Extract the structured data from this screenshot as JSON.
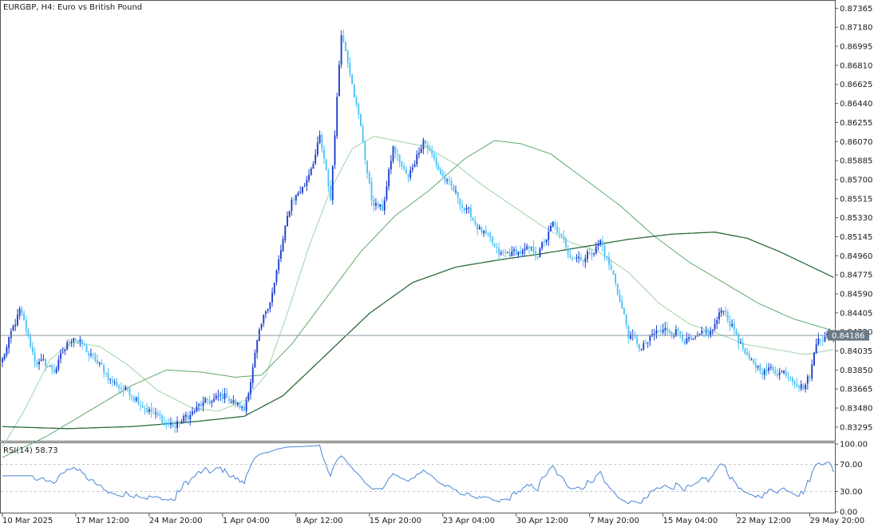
{
  "window": {
    "title": "EURGBP, H4:  Euro vs British Pound"
  },
  "colors": {
    "bull": "#1e3fd0",
    "bear": "#4fc3f7",
    "ma_fast": "#9fd3a8",
    "ma_mid": "#5fa86a",
    "ma_slow": "#2f6b3a",
    "rsi": "#4a86d6",
    "grid": "#c8c8c8",
    "price_line": "#8a9aa6",
    "price_label_bg": "#6a7a86"
  },
  "chart_data": [
    {
      "type": "candlestick",
      "title": "EURGBP, H4:  Euro vs British Pound",
      "symbol": "EURGBP",
      "timeframe": "H4",
      "ylim": [
        0.8317,
        0.8743
      ],
      "y_ticks": [
        "0.87365",
        "0.87180",
        "0.86995",
        "0.86810",
        "0.86625",
        "0.86440",
        "0.86255",
        "0.86070",
        "0.85885",
        "0.85700",
        "0.85515",
        "0.85330",
        "0.85145",
        "0.84960",
        "0.84775",
        "0.84590",
        "0.84405",
        "0.84220",
        "0.84035",
        "0.83850",
        "0.83665",
        "0.83480",
        "0.83295"
      ],
      "x_labels": [
        "10 Mar 2025",
        "17 Mar 12:00",
        "24 Mar 20:00",
        "1 Apr 04:00",
        "8 Apr 12:00",
        "15 Apr 20:00",
        "23 Apr 04:00",
        "30 Apr 12:00",
        "7 May 20:00",
        "15 May 04:00",
        "22 May 12:00",
        "29 May 20:00"
      ],
      "x_label_bars": [
        0,
        34,
        68,
        102,
        136,
        170,
        204,
        238,
        272,
        306,
        340,
        374
      ],
      "current_price": "0.84186",
      "current_price_value": 0.84186,
      "bar_count": 386,
      "anchors": [
        [
          0,
          0.8395
        ],
        [
          8,
          0.8441
        ],
        [
          15,
          0.8395
        ],
        [
          24,
          0.8385
        ],
        [
          33,
          0.842
        ],
        [
          40,
          0.84
        ],
        [
          52,
          0.8372
        ],
        [
          62,
          0.836
        ],
        [
          72,
          0.8338
        ],
        [
          80,
          0.833
        ],
        [
          92,
          0.835
        ],
        [
          104,
          0.836
        ],
        [
          112,
          0.8345
        ],
        [
          118,
          0.841
        ],
        [
          126,
          0.847
        ],
        [
          134,
          0.855
        ],
        [
          140,
          0.8565
        ],
        [
          147,
          0.861
        ],
        [
          152,
          0.855
        ],
        [
          157,
          0.8715
        ],
        [
          162,
          0.867
        ],
        [
          166,
          0.862
        ],
        [
          171,
          0.855
        ],
        [
          176,
          0.854
        ],
        [
          181,
          0.86
        ],
        [
          188,
          0.857
        ],
        [
          195,
          0.8612
        ],
        [
          202,
          0.858
        ],
        [
          208,
          0.856
        ],
        [
          215,
          0.854
        ],
        [
          222,
          0.852
        ],
        [
          230,
          0.8495
        ],
        [
          240,
          0.85
        ],
        [
          248,
          0.8498
        ],
        [
          255,
          0.8525
        ],
        [
          262,
          0.85
        ],
        [
          270,
          0.8495
        ],
        [
          277,
          0.851
        ],
        [
          284,
          0.847
        ],
        [
          290,
          0.842
        ],
        [
          296,
          0.8405
        ],
        [
          303,
          0.842
        ],
        [
          312,
          0.8425
        ],
        [
          320,
          0.841
        ],
        [
          328,
          0.842
        ],
        [
          334,
          0.8445
        ],
        [
          340,
          0.842
        ],
        [
          346,
          0.839
        ],
        [
          354,
          0.8385
        ],
        [
          360,
          0.8385
        ],
        [
          366,
          0.838
        ],
        [
          371,
          0.837
        ],
        [
          374,
          0.838
        ],
        [
          378,
          0.842
        ],
        [
          385,
          0.8418
        ]
      ],
      "ma": [
        {
          "period_hint": "fast",
          "points": [
            [
              0,
              0.831
            ],
            [
              10,
              0.8345
            ],
            [
              22,
              0.8395
            ],
            [
              32,
              0.8412
            ],
            [
              45,
              0.8408
            ],
            [
              58,
              0.839
            ],
            [
              72,
              0.8365
            ],
            [
              88,
              0.8348
            ],
            [
              100,
              0.8345
            ],
            [
              112,
              0.8355
            ],
            [
              122,
              0.838
            ],
            [
              132,
              0.844
            ],
            [
              142,
              0.8505
            ],
            [
              152,
              0.856
            ],
            [
              162,
              0.86
            ],
            [
              172,
              0.8612
            ],
            [
              182,
              0.8608
            ],
            [
              196,
              0.8602
            ],
            [
              210,
              0.8585
            ],
            [
              222,
              0.8565
            ],
            [
              236,
              0.8545
            ],
            [
              250,
              0.8525
            ],
            [
              262,
              0.851
            ],
            [
              276,
              0.85
            ],
            [
              290,
              0.848
            ],
            [
              304,
              0.845
            ],
            [
              318,
              0.843
            ],
            [
              332,
              0.842
            ],
            [
              344,
              0.841
            ],
            [
              358,
              0.8405
            ],
            [
              372,
              0.84
            ],
            [
              385,
              0.8405
            ]
          ]
        },
        {
          "period_hint": "mid",
          "points": [
            [
              0,
              0.83
            ],
            [
              20,
              0.832
            ],
            [
              40,
              0.8345
            ],
            [
              60,
              0.837
            ],
            [
              76,
              0.8385
            ],
            [
              92,
              0.8383
            ],
            [
              108,
              0.8378
            ],
            [
              120,
              0.838
            ],
            [
              134,
              0.841
            ],
            [
              150,
              0.8455
            ],
            [
              166,
              0.85
            ],
            [
              182,
              0.8535
            ],
            [
              198,
              0.856
            ],
            [
              214,
              0.859
            ],
            [
              228,
              0.8608
            ],
            [
              240,
              0.8605
            ],
            [
              254,
              0.8595
            ],
            [
              270,
              0.857
            ],
            [
              286,
              0.8545
            ],
            [
              302,
              0.8515
            ],
            [
              318,
              0.849
            ],
            [
              334,
              0.847
            ],
            [
              350,
              0.845
            ],
            [
              366,
              0.8435
            ],
            [
              385,
              0.8423
            ]
          ]
        },
        {
          "period_hint": "slow",
          "points": [
            [
              0,
              0.833
            ],
            [
              30,
              0.8328
            ],
            [
              60,
              0.833
            ],
            [
              90,
              0.8335
            ],
            [
              112,
              0.834
            ],
            [
              130,
              0.836
            ],
            [
              150,
              0.84
            ],
            [
              170,
              0.844
            ],
            [
              190,
              0.847
            ],
            [
              210,
              0.8485
            ],
            [
              230,
              0.8492
            ],
            [
              250,
              0.8498
            ],
            [
              270,
              0.8505
            ],
            [
              290,
              0.8512
            ],
            [
              310,
              0.8517
            ],
            [
              330,
              0.8519
            ],
            [
              345,
              0.8513
            ],
            [
              360,
              0.85
            ],
            [
              375,
              0.8485
            ],
            [
              385,
              0.8475
            ]
          ]
        }
      ]
    },
    {
      "type": "line",
      "title": "RSI(14) 58.73",
      "label": "RSI(14) 58.73",
      "ylim": [
        0,
        100
      ],
      "y_ticks": [
        "100.00",
        "70.00",
        "30.00",
        "0.00"
      ],
      "levels": [
        70,
        30
      ],
      "current_value": 58.73
    }
  ]
}
